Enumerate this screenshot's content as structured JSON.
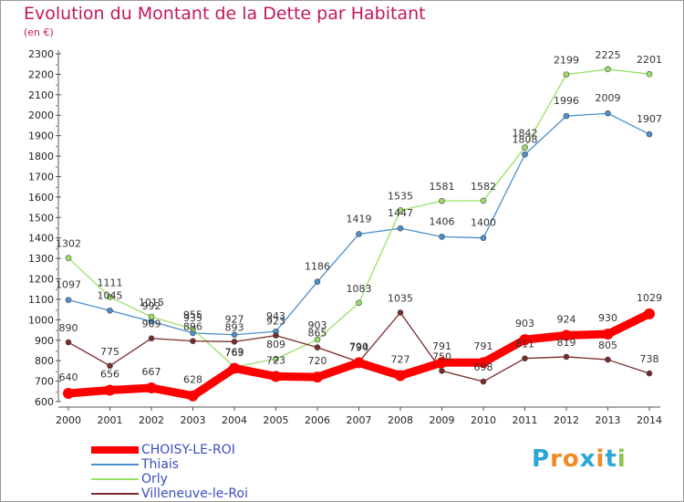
{
  "title": "Evolution du Montant de la Dette par Habitant",
  "unit": "(en €)",
  "logo": {
    "text": "Proxiti",
    "colors": [
      "#2aa6d8",
      "#f08a24",
      "#f08a24",
      "#2aa6d8",
      "#f08a24",
      "#2aa6d8",
      "#8bc34a"
    ]
  },
  "chart_data": {
    "type": "line",
    "x": [
      "2000",
      "2001",
      "2002",
      "2003",
      "2004",
      "2005",
      "2006",
      "2007",
      "2008",
      "2009",
      "2010",
      "2011",
      "2012",
      "2013",
      "2014"
    ],
    "ylim": [
      600,
      2300
    ],
    "yticks": [
      600,
      700,
      800,
      900,
      1000,
      1100,
      1200,
      1300,
      1400,
      1500,
      1600,
      1700,
      1800,
      1900,
      2000,
      2100,
      2200,
      2300
    ],
    "grid": false,
    "legend_position": "bottom-left",
    "series": [
      {
        "name": "CHOISY-LE-ROI",
        "color": "#ff0000",
        "emphasis": true,
        "values": [
          640,
          656,
          667,
          628,
          763,
          723,
          720,
          790,
          727,
          791,
          791,
          903,
          924,
          930,
          1029
        ]
      },
      {
        "name": "Thiais",
        "color": "#4d8fcc",
        "values": [
          1097,
          1045,
          992,
          935,
          927,
          943,
          1186,
          1419,
          1447,
          1406,
          1400,
          1808,
          1996,
          2009,
          1907
        ]
      },
      {
        "name": "Orly",
        "color": "#99e066",
        "values": [
          1302,
          1111,
          1015,
          955,
          769,
          809,
          903,
          1083,
          1535,
          1581,
          1582,
          1842,
          2199,
          2225,
          2201
        ]
      },
      {
        "name": "Villeneuve-le-Roi",
        "color": "#7a2a2a",
        "values": [
          890,
          775,
          909,
          896,
          893,
          923,
          865,
          794,
          1035,
          750,
          698,
          811,
          819,
          805,
          738
        ]
      }
    ]
  }
}
